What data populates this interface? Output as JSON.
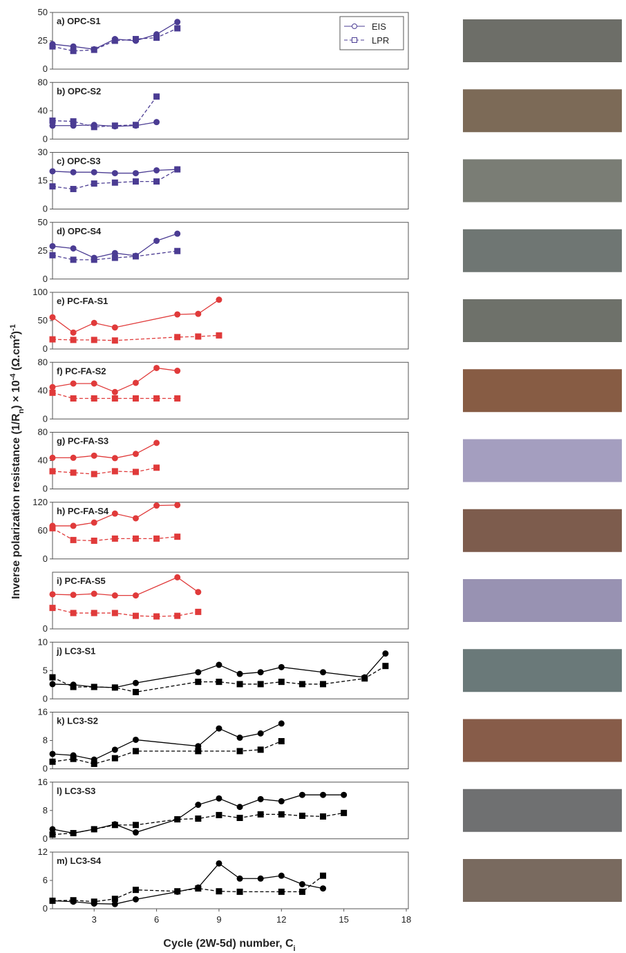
{
  "figure": {
    "y_label_parts": [
      "Inverse polarization resistance (1/R",
      "n",
      ") × 10",
      "-4",
      " (Ω.cm",
      "2",
      ")",
      "-1"
    ],
    "x_label_parts": [
      "Cycle (2W-5d) number, C",
      "i"
    ]
  },
  "chart_data": [
    {
      "type": "line",
      "title": "a) OPC-S1",
      "xlim": [
        1,
        18
      ],
      "ylim": [
        0,
        50
      ],
      "yticks": [
        0,
        25,
        50
      ],
      "legend": "top-right",
      "series": [
        {
          "name": "EIS",
          "color": "#4b3c93",
          "marker": "circle",
          "style": "solid",
          "x": [
            1,
            2,
            3,
            4,
            5,
            6,
            7
          ],
          "values": [
            22,
            20,
            17.5,
            26.5,
            25,
            30.7,
            41.6
          ]
        },
        {
          "name": "LPR",
          "color": "#4b3c93",
          "marker": "square",
          "style": "dashed",
          "x": [
            1,
            2,
            3,
            4,
            5,
            6,
            7
          ],
          "values": [
            20,
            16,
            17,
            25,
            26.5,
            27.7,
            36
          ]
        }
      ]
    },
    {
      "type": "line",
      "title": "b) OPC-S2",
      "xlim": [
        1,
        18
      ],
      "ylim": [
        0,
        80
      ],
      "yticks": [
        0,
        40,
        80
      ],
      "series": [
        {
          "color": "#4b3c93",
          "marker": "circle",
          "style": "solid",
          "x": [
            1,
            2,
            3,
            4,
            5,
            6
          ],
          "values": [
            19,
            19,
            20,
            18,
            19,
            24
          ]
        },
        {
          "color": "#4b3c93",
          "marker": "square",
          "style": "dashed",
          "x": [
            1,
            2,
            3,
            4,
            5,
            6
          ],
          "values": [
            26,
            25,
            17,
            19,
            20,
            60
          ]
        }
      ]
    },
    {
      "type": "line",
      "title": "c) OPC-S3",
      "xlim": [
        1,
        18
      ],
      "ylim": [
        0,
        30
      ],
      "yticks": [
        0,
        15,
        30
      ],
      "series": [
        {
          "color": "#4b3c93",
          "marker": "circle",
          "style": "solid",
          "x": [
            1,
            2,
            3,
            4,
            5,
            6,
            7
          ],
          "values": [
            20,
            19.5,
            19.5,
            19,
            19,
            20.5,
            21
          ]
        },
        {
          "color": "#4b3c93",
          "marker": "square",
          "style": "dashed",
          "x": [
            1,
            2,
            3,
            4,
            5,
            6,
            7
          ],
          "values": [
            12,
            10.6,
            13.5,
            14,
            14.6,
            14.6,
            21
          ]
        }
      ]
    },
    {
      "type": "line",
      "title": "d) OPC-S4",
      "xlim": [
        1,
        18
      ],
      "ylim": [
        0,
        50
      ],
      "yticks": [
        0,
        25,
        50
      ],
      "series": [
        {
          "color": "#4b3c93",
          "marker": "circle",
          "style": "solid",
          "x": [
            1,
            2,
            3,
            4,
            5,
            6,
            7
          ],
          "values": [
            29,
            27,
            18.7,
            22.9,
            20.5,
            33.7,
            40
          ]
        },
        {
          "color": "#4b3c93",
          "marker": "square",
          "style": "dashed",
          "x": [
            1,
            2,
            3,
            4,
            5,
            7
          ],
          "values": [
            21,
            17,
            17,
            18.7,
            20,
            24.7
          ]
        }
      ]
    },
    {
      "type": "line",
      "title": "e) PC-FA-S1",
      "xlim": [
        1,
        18
      ],
      "ylim": [
        0,
        100
      ],
      "yticks": [
        0,
        50,
        100
      ],
      "series": [
        {
          "color": "#e03a3a",
          "marker": "circle",
          "style": "solid",
          "x": [
            1,
            2,
            3,
            4,
            7,
            8,
            9
          ],
          "values": [
            56,
            29,
            46,
            38,
            61,
            62,
            87
          ]
        },
        {
          "color": "#e03a3a",
          "marker": "square",
          "style": "dashed",
          "x": [
            1,
            2,
            3,
            4,
            7,
            8,
            9
          ],
          "values": [
            17,
            16,
            16,
            15,
            21,
            22,
            24
          ]
        }
      ]
    },
    {
      "type": "line",
      "title": "f) PC-FA-S2",
      "xlim": [
        1,
        18
      ],
      "ylim": [
        0,
        80
      ],
      "yticks": [
        0,
        40,
        80
      ],
      "series": [
        {
          "color": "#e03a3a",
          "marker": "circle",
          "style": "solid",
          "x": [
            1,
            2,
            3,
            4,
            5,
            6,
            7
          ],
          "values": [
            45,
            50,
            50,
            38,
            51,
            72,
            68
          ]
        },
        {
          "color": "#e03a3a",
          "marker": "square",
          "style": "dashed",
          "x": [
            1,
            2,
            3,
            4,
            5,
            6,
            7
          ],
          "values": [
            37,
            29,
            29,
            29,
            29,
            29,
            29
          ]
        }
      ]
    },
    {
      "type": "line",
      "title": "g) PC-FA-S3",
      "xlim": [
        1,
        18
      ],
      "ylim": [
        0,
        80
      ],
      "yticks": [
        0,
        40,
        80
      ],
      "series": [
        {
          "color": "#e03a3a",
          "marker": "circle",
          "style": "solid",
          "x": [
            1,
            2,
            3,
            4,
            5,
            6
          ],
          "values": [
            44,
            44,
            47,
            43.5,
            49.5,
            65
          ]
        },
        {
          "color": "#e03a3a",
          "marker": "square",
          "style": "dashed",
          "x": [
            1,
            2,
            3,
            4,
            5,
            6
          ],
          "values": [
            25,
            23,
            21,
            25,
            24,
            30
          ]
        }
      ]
    },
    {
      "type": "line",
      "title": "h) PC-FA-S4",
      "xlim": [
        1,
        18
      ],
      "ylim": [
        0,
        120
      ],
      "yticks": [
        0,
        60,
        120
      ],
      "series": [
        {
          "color": "#e03a3a",
          "marker": "circle",
          "style": "solid",
          "x": [
            1,
            2,
            3,
            4,
            5,
            6,
            7
          ],
          "values": [
            70,
            70,
            77,
            96,
            86,
            113,
            114
          ]
        },
        {
          "color": "#e03a3a",
          "marker": "square",
          "style": "dashed",
          "x": [
            1,
            2,
            3,
            4,
            5,
            6,
            7
          ],
          "values": [
            65,
            40,
            38.5,
            43,
            43,
            43,
            47
          ]
        }
      ]
    },
    {
      "type": "line",
      "title": "i) PC-FA-S5",
      "xlim": [
        1,
        18
      ],
      "ylim": [
        0,
        100
      ],
      "yticks": [
        0
      ],
      "series": [
        {
          "color": "#e03a3a",
          "marker": "circle",
          "style": "solid",
          "x": [
            1,
            2,
            3,
            4,
            5,
            7,
            8
          ],
          "values": [
            61,
            60,
            62,
            59,
            59,
            91,
            65
          ]
        },
        {
          "color": "#e03a3a",
          "marker": "square",
          "style": "dashed",
          "x": [
            1,
            2,
            3,
            4,
            5,
            6,
            7,
            8
          ],
          "values": [
            37,
            28,
            28,
            28,
            23,
            22,
            23,
            30
          ]
        }
      ]
    },
    {
      "type": "line",
      "title": "j) LC3-S1",
      "xlim": [
        1,
        18
      ],
      "ylim": [
        0,
        10
      ],
      "yticks": [
        0,
        5,
        10
      ],
      "series": [
        {
          "color": "#000000",
          "marker": "circle",
          "style": "solid",
          "x": [
            1,
            2,
            3,
            4,
            5,
            8,
            9,
            10,
            11,
            12,
            14,
            16,
            17
          ],
          "values": [
            2.6,
            2.5,
            2.1,
            2.0,
            2.8,
            4.7,
            6.0,
            4.4,
            4.7,
            5.6,
            4.7,
            3.8,
            8.0
          ]
        },
        {
          "color": "#000000",
          "marker": "square",
          "style": "dashed",
          "x": [
            1,
            2,
            3,
            4,
            5,
            8,
            9,
            10,
            11,
            12,
            13,
            14,
            16,
            17
          ],
          "values": [
            3.8,
            2.1,
            2.1,
            2.0,
            1.2,
            3.0,
            3.0,
            2.6,
            2.6,
            3.0,
            2.6,
            2.6,
            3.6,
            5.8
          ]
        }
      ]
    },
    {
      "type": "line",
      "title": "k) LC3-S2",
      "xlim": [
        1,
        18
      ],
      "ylim": [
        0,
        16
      ],
      "yticks": [
        0,
        8,
        16
      ],
      "series": [
        {
          "color": "#000000",
          "marker": "circle",
          "style": "solid",
          "x": [
            1,
            2,
            3,
            4,
            5,
            8,
            9,
            10,
            11,
            12
          ],
          "values": [
            4.2,
            3.8,
            2.6,
            5.4,
            8.2,
            6.4,
            11.4,
            8.8,
            10,
            12.8
          ]
        },
        {
          "color": "#000000",
          "marker": "square",
          "style": "dashed",
          "x": [
            1,
            2,
            3,
            4,
            5,
            8,
            10,
            11,
            12
          ],
          "values": [
            2.0,
            2.8,
            1.4,
            3.0,
            5.0,
            5.0,
            5.0,
            5.4,
            7.8
          ]
        }
      ]
    },
    {
      "type": "line",
      "title": "l) LC3-S3",
      "xlim": [
        1,
        18
      ],
      "ylim": [
        0,
        16
      ],
      "yticks": [
        0,
        8,
        16
      ],
      "series": [
        {
          "color": "#000000",
          "marker": "circle",
          "style": "solid",
          "x": [
            1,
            2,
            3,
            4,
            5,
            7,
            8,
            9,
            10,
            11,
            12,
            13,
            14,
            15
          ],
          "values": [
            2.7,
            1.6,
            2.7,
            4.1,
            1.8,
            5.5,
            9.6,
            11.4,
            9.0,
            11.2,
            10.6,
            12.4,
            12.4,
            12.4
          ]
        },
        {
          "color": "#000000",
          "marker": "square",
          "style": "dashed",
          "x": [
            1,
            2,
            3,
            4,
            5,
            7,
            8,
            9,
            10,
            11,
            12,
            13,
            14,
            15
          ],
          "values": [
            1.2,
            1.6,
            2.7,
            3.9,
            3.9,
            5.5,
            5.7,
            6.7,
            5.9,
            6.9,
            6.9,
            6.5,
            6.3,
            7.3
          ]
        }
      ]
    },
    {
      "type": "line",
      "title": "m) LC3-S4",
      "xlim": [
        1,
        18
      ],
      "ylim": [
        0,
        12
      ],
      "yticks": [
        0,
        6,
        12
      ],
      "xticks": [
        3,
        6,
        9,
        12,
        15,
        18
      ],
      "series": [
        {
          "color": "#000000",
          "marker": "circle",
          "style": "solid",
          "x": [
            1,
            2,
            3,
            4,
            5,
            7,
            8,
            9,
            10,
            11,
            12,
            13,
            14
          ],
          "values": [
            1.7,
            1.5,
            1.1,
            1.0,
            2.0,
            3.6,
            4.5,
            9.6,
            6.4,
            6.4,
            7.0,
            5.2,
            4.3
          ]
        },
        {
          "color": "#000000",
          "marker": "square",
          "style": "dashed",
          "x": [
            1,
            2,
            3,
            4,
            5,
            7,
            8,
            9,
            10,
            12,
            13,
            14
          ],
          "values": [
            1.7,
            1.8,
            1.5,
            2.1,
            4.0,
            3.7,
            4.3,
            3.7,
            3.6,
            3.6,
            3.6,
            7.0
          ]
        }
      ]
    }
  ]
}
